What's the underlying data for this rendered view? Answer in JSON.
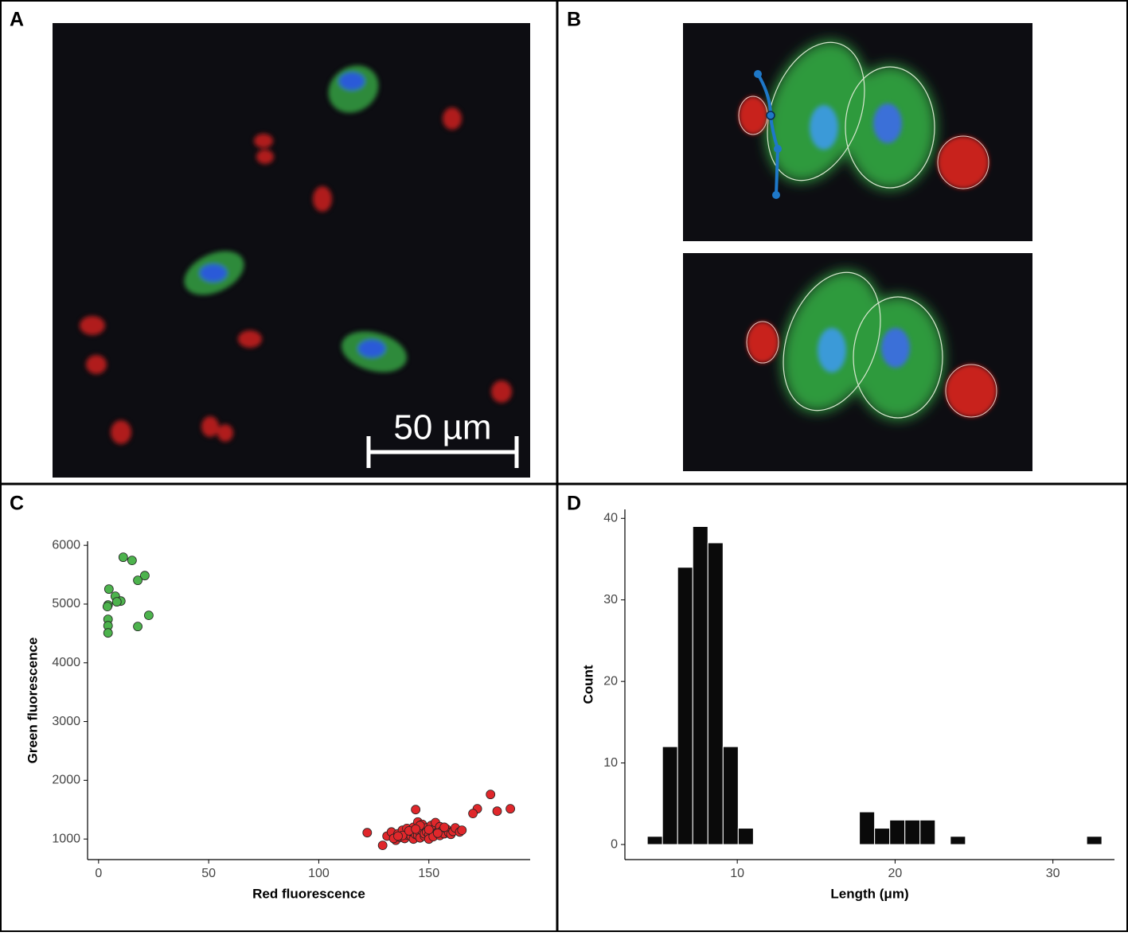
{
  "panel_labels": [
    "A",
    "B",
    "C",
    "D"
  ],
  "scale_bar": "50 µm",
  "chart_data": [
    {
      "type": "scatter",
      "x_label": "Red fluorescence",
      "y_label": "Green fluorescence",
      "xlim": [
        -5,
        196
      ],
      "ylim": [
        650,
        6070
      ],
      "xticks": [
        0,
        50,
        100,
        150
      ],
      "yticks": [
        1000,
        2000,
        3000,
        4000,
        5000,
        6000
      ],
      "series": [
        {
          "color": "#4db34d",
          "x": [
            11.2,
            15.2,
            21,
            17.8,
            4.7,
            7.6,
            10.1,
            8.3,
            4.3,
            4,
            22.8,
            4.3,
            4.3,
            17.8,
            4.3
          ],
          "y": [
            5797,
            5743,
            5485,
            5404,
            5255,
            5133,
            5051,
            5038,
            4984,
            4957,
            4808,
            4740,
            4631,
            4618,
            4509
          ]
        },
        {
          "color": "#e0272b",
          "x": [
            131,
            133,
            135,
            136,
            137,
            138,
            139,
            140,
            140,
            141,
            142,
            142,
            143,
            143,
            144,
            144,
            145,
            145,
            146,
            146,
            147,
            147,
            148,
            148,
            149,
            149,
            150,
            150,
            151,
            151,
            152,
            152,
            153,
            153,
            154,
            155,
            155,
            156,
            157,
            158,
            159,
            160,
            161,
            162,
            164,
            165,
            134,
            138,
            141,
            146,
            150,
            154,
            157,
            136,
            144,
            178,
            187,
            181,
            172,
            170,
            122,
            129,
            144
          ],
          "y": [
            1050,
            1120,
            980,
            1090,
            1030,
            1150,
            1010,
            1070,
            1180,
            1100,
            1040,
            1130,
            1000,
            1200,
            1080,
            1160,
            1060,
            1290,
            1110,
            1020,
            1140,
            1250,
            1050,
            1090,
            1190,
            1120,
            1070,
            1000,
            1150,
            1230,
            1100,
            1040,
            1180,
            1280,
            1120,
            1060,
            1210,
            1140,
            1090,
            1170,
            1110,
            1080,
            1130,
            1190,
            1120,
            1150,
            1010,
            1060,
            1140,
            1230,
            1160,
            1100,
            1200,
            1050,
            1170,
            1759,
            1515,
            1474,
            1515,
            1434,
            1108,
            892,
            1501
          ]
        }
      ]
    },
    {
      "type": "histogram",
      "x_label": "Length (μm)",
      "y_label": "Count",
      "xlim": [
        2.88,
        33.9
      ],
      "ylim": [
        -1.85,
        41.1
      ],
      "xticks": [
        10,
        20,
        30
      ],
      "yticks": [
        0,
        10,
        20,
        30,
        40
      ],
      "color": "#0a0a0a",
      "bins": [
        4.3,
        5.26,
        6.22,
        7.18,
        8.14,
        9.1,
        10.06,
        11.02,
        11.98,
        12.94,
        13.9,
        14.86,
        15.82,
        16.78,
        17.74,
        18.7,
        19.66,
        20.62,
        21.58,
        22.54,
        23.5,
        24.46,
        25.42,
        26.38,
        27.34,
        28.3,
        29.26,
        30.22,
        31.18,
        32.14,
        33.1
      ],
      "values": [
        1,
        12,
        34,
        39,
        37,
        12,
        2,
        0,
        0,
        0,
        0,
        0,
        0,
        0,
        4,
        2,
        3,
        3,
        3,
        0,
        1,
        0,
        0,
        0,
        0,
        0,
        0,
        0,
        0,
        1
      ]
    }
  ]
}
